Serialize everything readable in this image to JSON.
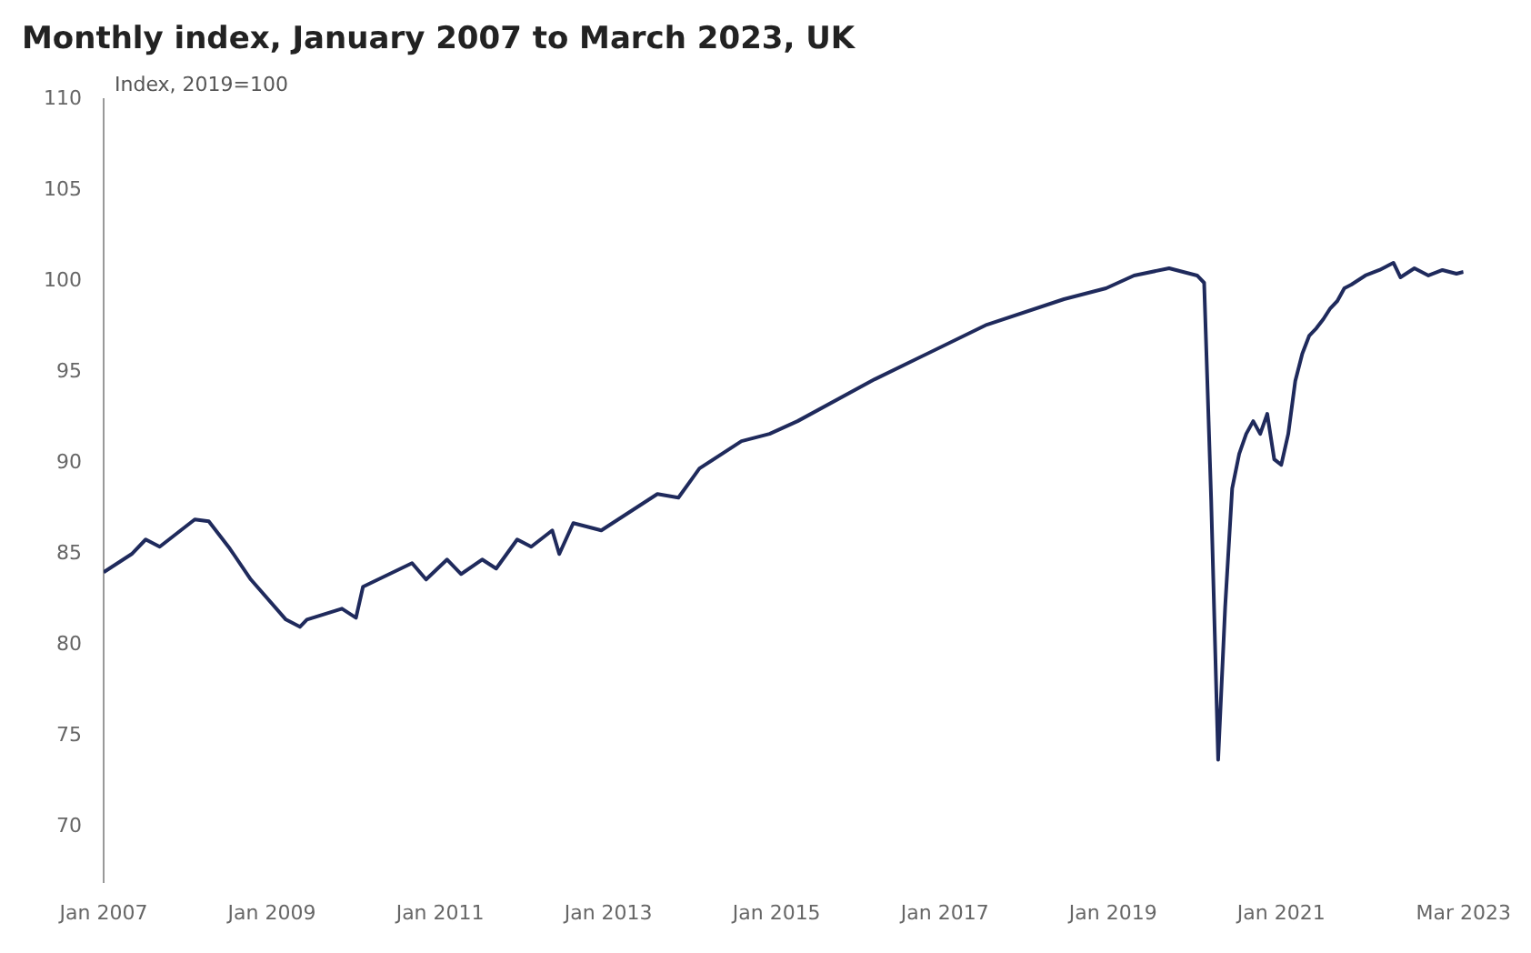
{
  "chart_data": {
    "type": "line",
    "title": "Monthly index, January 2007 to March 2023, UK",
    "ylabel": "Index, 2019=100",
    "x": [
      "2007-01",
      "2007-05",
      "2007-07",
      "2007-09",
      "2008-02",
      "2008-04",
      "2008-07",
      "2008-10",
      "2009-03",
      "2009-05",
      "2009-06",
      "2009-11",
      "2010-01",
      "2010-02",
      "2010-09",
      "2010-11",
      "2011-02",
      "2011-04",
      "2011-07",
      "2011-09",
      "2011-12",
      "2012-02",
      "2012-05",
      "2012-06",
      "2012-08",
      "2012-12",
      "2013-08",
      "2013-11",
      "2014-02",
      "2014-08",
      "2014-12",
      "2015-04",
      "2016-03",
      "2017-07",
      "2018-06",
      "2018-12",
      "2019-04",
      "2019-09",
      "2020-01",
      "2020-02",
      "2020-03",
      "2020-04",
      "2020-05",
      "2020-06",
      "2020-07",
      "2020-08",
      "2020-09",
      "2020-10",
      "2020-11",
      "2020-12",
      "2021-01",
      "2021-02",
      "2021-03",
      "2021-04",
      "2021-05",
      "2021-06",
      "2021-07",
      "2021-08",
      "2021-09",
      "2021-10",
      "2021-11",
      "2022-01",
      "2022-03",
      "2022-05",
      "2022-06",
      "2022-08",
      "2022-10",
      "2022-12",
      "2023-02",
      "2023-03"
    ],
    "series": [
      {
        "color": "#1f2a5c",
        "values": [
          84.0,
          85.0,
          85.8,
          85.4,
          86.9,
          86.8,
          85.3,
          83.6,
          81.4,
          81.0,
          81.4,
          82.0,
          81.5,
          83.2,
          84.5,
          83.6,
          84.7,
          83.9,
          84.7,
          84.2,
          85.8,
          85.4,
          86.3,
          85.0,
          86.7,
          86.3,
          88.3,
          88.1,
          89.7,
          91.2,
          91.6,
          92.3,
          94.6,
          97.6,
          99.0,
          99.6,
          100.3,
          100.7,
          100.3,
          99.9,
          88.0,
          73.7,
          82.1,
          88.6,
          90.5,
          91.6,
          92.3,
          91.6,
          92.7,
          90.2,
          89.9,
          91.6,
          94.5,
          96.0,
          97.0,
          97.4,
          97.9,
          98.5,
          98.9,
          99.6,
          99.8,
          100.3,
          100.6,
          101.0,
          100.2,
          100.7,
          100.3,
          100.6,
          100.4,
          100.5
        ]
      }
    ],
    "ylim": [
      67,
      110
    ],
    "yticks": [
      70,
      75,
      80,
      85,
      90,
      95,
      100,
      105,
      110
    ],
    "xlim": [
      "2007-01",
      "2023-03"
    ],
    "xticks": [
      {
        "value": "2007-01",
        "label": "Jan 2007"
      },
      {
        "value": "2009-01",
        "label": "Jan 2009"
      },
      {
        "value": "2011-01",
        "label": "Jan 2011"
      },
      {
        "value": "2013-01",
        "label": "Jan 2013"
      },
      {
        "value": "2015-01",
        "label": "Jan 2015"
      },
      {
        "value": "2017-01",
        "label": "Jan 2017"
      },
      {
        "value": "2019-01",
        "label": "Jan 2019"
      },
      {
        "value": "2021-01",
        "label": "Jan 2021"
      },
      {
        "value": "2023-03",
        "label": "Mar 2023"
      }
    ],
    "grid": false,
    "legend": false,
    "marker": "none",
    "line_style": "solid"
  }
}
